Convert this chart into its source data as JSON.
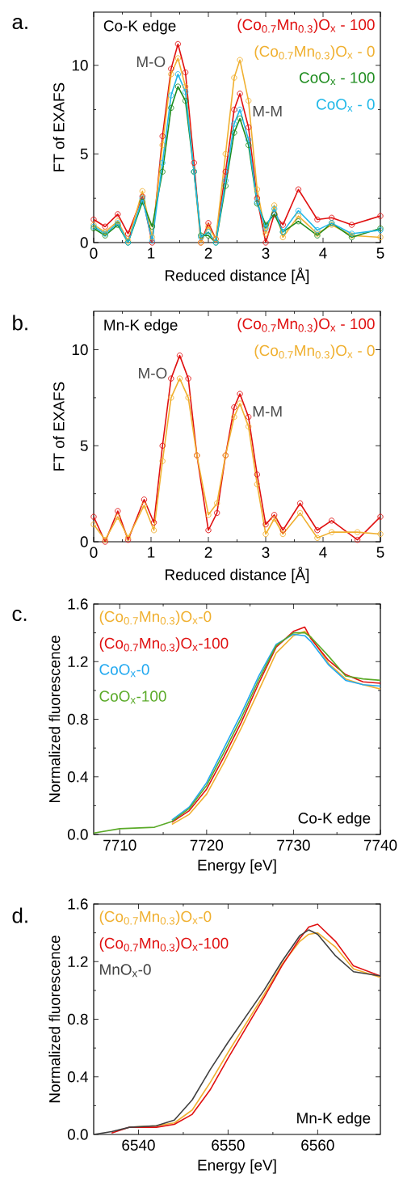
{
  "chart_data": [
    {
      "type": "line",
      "title": "a.",
      "xlabel": "Reduced distance [Å]",
      "ylabel": "FT of EXAFS",
      "marker": "circle",
      "legend": "top right",
      "annotations": [
        "Co-K edge",
        {
          "text": "M-O",
          "x": 1.47,
          "y": 11.2
        },
        {
          "text": "M-M",
          "x": 2.55,
          "y": 8.4
        }
      ],
      "x": [
        0,
        0.2,
        0.42,
        0.6,
        0.85,
        1.02,
        1.2,
        1.35,
        1.47,
        1.6,
        1.75,
        1.87,
        2.0,
        2.13,
        2.3,
        2.45,
        2.55,
        2.7,
        2.85,
        3.0,
        3.15,
        3.3,
        3.57,
        3.9,
        4.15,
        4.5,
        5
      ],
      "xlim": [
        0,
        5
      ],
      "xticks": [
        0,
        1,
        2,
        3,
        4,
        5
      ],
      "ylim": [
        0,
        13
      ],
      "yticks": [
        0,
        5,
        10
      ],
      "series": [
        {
          "name": "(Co$_{0.7}$Mn$_{0.3}$)O$_{x}$ - 100",
          "color": "#e01010",
          "values": [
            1.3,
            0.9,
            1.6,
            0.5,
            2.6,
            0,
            6.0,
            9.8,
            11.2,
            9.6,
            4.5,
            0,
            1.1,
            0.2,
            4.0,
            7.5,
            8.4,
            6.5,
            2.5,
            0,
            1.6,
            1.0,
            3.0,
            1.3,
            1.4,
            1.0,
            1.5
          ]
        },
        {
          "name": "(Co$_{0.7}$Mn$_{0.3}$)O$_{x}$ - 0",
          "color": "#f0b030",
          "values": [
            1.0,
            0.6,
            1.2,
            0.1,
            2.9,
            0.3,
            5.5,
            9.5,
            10.4,
            8.8,
            4.0,
            0,
            0.9,
            0.2,
            5.0,
            9.3,
            10.3,
            8.0,
            3.0,
            0.5,
            2.1,
            0.3,
            1.5,
            0.5,
            1.0,
            0.4,
            0.3
          ]
        },
        {
          "name": "CoO$_{x}$ - 100",
          "color": "#1e8c1e",
          "values": [
            0.8,
            0.4,
            1.0,
            0,
            2.3,
            0.9,
            4.0,
            7.6,
            8.8,
            8.0,
            4.0,
            0.4,
            0.4,
            0,
            3.2,
            6.2,
            7.0,
            5.5,
            2.2,
            1.0,
            1.6,
            0.6,
            1.2,
            0.4,
            1.1,
            0.3,
            0.8
          ]
        },
        {
          "name": "CoO$_{x}$ - 0",
          "color": "#20b8e8",
          "values": [
            0.9,
            0.5,
            1.1,
            0,
            2.5,
            0.1,
            4.5,
            8.3,
            9.5,
            8.5,
            4.0,
            0.3,
            0.6,
            0,
            3.5,
            6.7,
            7.5,
            5.8,
            2.3,
            0.8,
            1.9,
            0.6,
            1.8,
            0.7,
            1.1,
            0.5,
            0.7
          ]
        }
      ]
    },
    {
      "type": "line",
      "title": "b.",
      "xlabel": "Reduced distance [Å]",
      "ylabel": "FT of EXAFS",
      "marker": "circle",
      "legend": "top right",
      "annotations": [
        "Mn-K edge",
        {
          "text": "M-O",
          "x": 1.5,
          "y": 9.7
        },
        {
          "text": "M-M",
          "x": 2.55,
          "y": 7.7
        }
      ],
      "x": [
        0,
        0.2,
        0.42,
        0.6,
        0.88,
        1.05,
        1.2,
        1.35,
        1.5,
        1.65,
        1.8,
        2.0,
        2.15,
        2.3,
        2.45,
        2.55,
        2.7,
        2.85,
        3.0,
        3.15,
        3.3,
        3.6,
        3.9,
        4.15,
        4.6,
        5
      ],
      "xlim": [
        0,
        5
      ],
      "xticks": [
        0,
        1,
        2,
        3,
        4,
        5
      ],
      "ylim": [
        0,
        12
      ],
      "yticks": [
        0,
        5,
        10
      ],
      "series": [
        {
          "name": "(Co$_{0.7}$Mn$_{0.3}$)O$_{x}$ - 100",
          "color": "#e01010",
          "values": [
            1.3,
            0,
            1.6,
            0.1,
            2.2,
            1.0,
            5.0,
            8.5,
            9.7,
            8.5,
            4.5,
            0.6,
            1.5,
            4.5,
            7.0,
            7.7,
            6.5,
            3.5,
            0.9,
            1.4,
            0.6,
            2.0,
            0.6,
            1.1,
            0.1,
            1.3
          ]
        },
        {
          "name": "(Co$_{0.7}$Mn$_{0.3}$)O$_{x}$ - 0",
          "color": "#f0b030",
          "values": [
            0.9,
            0.1,
            1.3,
            0.2,
            1.9,
            0.6,
            4.2,
            7.5,
            8.5,
            7.5,
            4.5,
            1.4,
            2.0,
            4.5,
            6.5,
            7.2,
            6.0,
            3.0,
            0.4,
            1.2,
            0.4,
            1.5,
            0.2,
            0.5,
            0.5,
            0.4
          ]
        }
      ]
    },
    {
      "type": "line",
      "title": "c.",
      "xlabel": "Energy [eV]",
      "ylabel": "Normalized fluorescence",
      "legend": "top left",
      "annotations": [
        "Co-K edge"
      ],
      "x": [
        7707,
        7710,
        7714,
        7716,
        7718,
        7720,
        7722,
        7724,
        7726,
        7728,
        7730,
        7731.3,
        7732,
        7734,
        7736,
        7738,
        7740
      ],
      "xlim": [
        7707,
        7740
      ],
      "xticks": [
        7710,
        7720,
        7730,
        7740
      ],
      "ylim": [
        0,
        1.6
      ],
      "yticks": [
        {
          "value": 0,
          "label": "0.0"
        },
        {
          "value": 0.4,
          "label": "0.4"
        },
        {
          "value": 0.8,
          "label": "0.8"
        },
        {
          "value": 1.2,
          "label": "1.2"
        },
        {
          "value": 1.6,
          "label": "1.6"
        }
      ],
      "series": [
        {
          "name": "(Co$_{0.7}$Mn$_{0.3}$)O$_{x}$-0",
          "color": "#f0b030",
          "values": [
            null,
            null,
            null,
            0.07,
            0.14,
            0.28,
            0.5,
            0.74,
            1.0,
            1.26,
            1.38,
            1.41,
            1.37,
            1.19,
            1.08,
            1.04,
            1.01
          ]
        },
        {
          "name": "(Co$_{0.7}$Mn$_{0.3}$)O$_{x}$-100",
          "color": "#e01010",
          "values": [
            null,
            null,
            null,
            0.085,
            0.165,
            0.315,
            0.54,
            0.78,
            1.05,
            1.3,
            1.41,
            1.44,
            1.36,
            1.21,
            1.11,
            1.06,
            1.05
          ]
        },
        {
          "name": "CoO$_{x}$-0",
          "color": "#20a8f0",
          "values": [
            null,
            null,
            null,
            0.1,
            0.19,
            0.36,
            0.6,
            0.84,
            1.1,
            1.32,
            1.39,
            1.38,
            1.34,
            1.18,
            1.07,
            1.04,
            1.03
          ]
        },
        {
          "name": "CoO$_{x}$-100",
          "color": "#5aaa28",
          "values": [
            0.01,
            0.04,
            0.05,
            0.09,
            0.18,
            0.34,
            0.57,
            0.81,
            1.075,
            1.31,
            1.4,
            1.4,
            1.37,
            1.24,
            1.1,
            1.08,
            1.07
          ]
        }
      ]
    },
    {
      "type": "line",
      "title": "d.",
      "xlabel": "Energy [eV]",
      "ylabel": "Normalized fluorescence",
      "legend": "top left",
      "annotations": [
        "Mn-K edge"
      ],
      "x": [
        6535,
        6537,
        6539,
        6542,
        6544,
        6546,
        6548,
        6550,
        6552,
        6554,
        6556,
        6558,
        6559,
        6560,
        6562,
        6564,
        6567
      ],
      "xlim": [
        6535,
        6567
      ],
      "xticks": [
        6540,
        6550,
        6560
      ],
      "ylim": [
        0,
        1.6
      ],
      "yticks": [
        {
          "value": 0,
          "label": "0.0"
        },
        {
          "value": 0.4,
          "label": "0.4"
        },
        {
          "value": 0.8,
          "label": "0.8"
        },
        {
          "value": 1.2,
          "label": "1.2"
        },
        {
          "value": 1.6,
          "label": "1.6"
        }
      ],
      "series": [
        {
          "name": "(Co$_{0.7}$Mn$_{0.3}$)O$_{x}$-0",
          "color": "#f0b030",
          "values": [
            null,
            null,
            0.05,
            0.06,
            0.08,
            0.17,
            0.36,
            0.57,
            0.77,
            0.97,
            1.18,
            1.34,
            1.39,
            1.4,
            1.3,
            1.15,
            1.09
          ]
        },
        {
          "name": "(Co$_{0.7}$Mn$_{0.3}$)O$_{x}$-100",
          "color": "#e01010",
          "values": [
            null,
            0.01,
            0.05,
            0.05,
            0.07,
            0.14,
            0.31,
            0.53,
            0.74,
            0.95,
            1.17,
            1.36,
            1.44,
            1.46,
            1.34,
            1.17,
            1.1
          ]
        },
        {
          "name": "MnO$_{x}$-0",
          "color": "#404040",
          "values": [
            0,
            0.02,
            0.05,
            0.06,
            0.1,
            0.24,
            0.45,
            0.64,
            0.82,
            1.0,
            1.2,
            1.38,
            1.42,
            1.39,
            1.24,
            1.13,
            1.1
          ]
        }
      ]
    }
  ]
}
